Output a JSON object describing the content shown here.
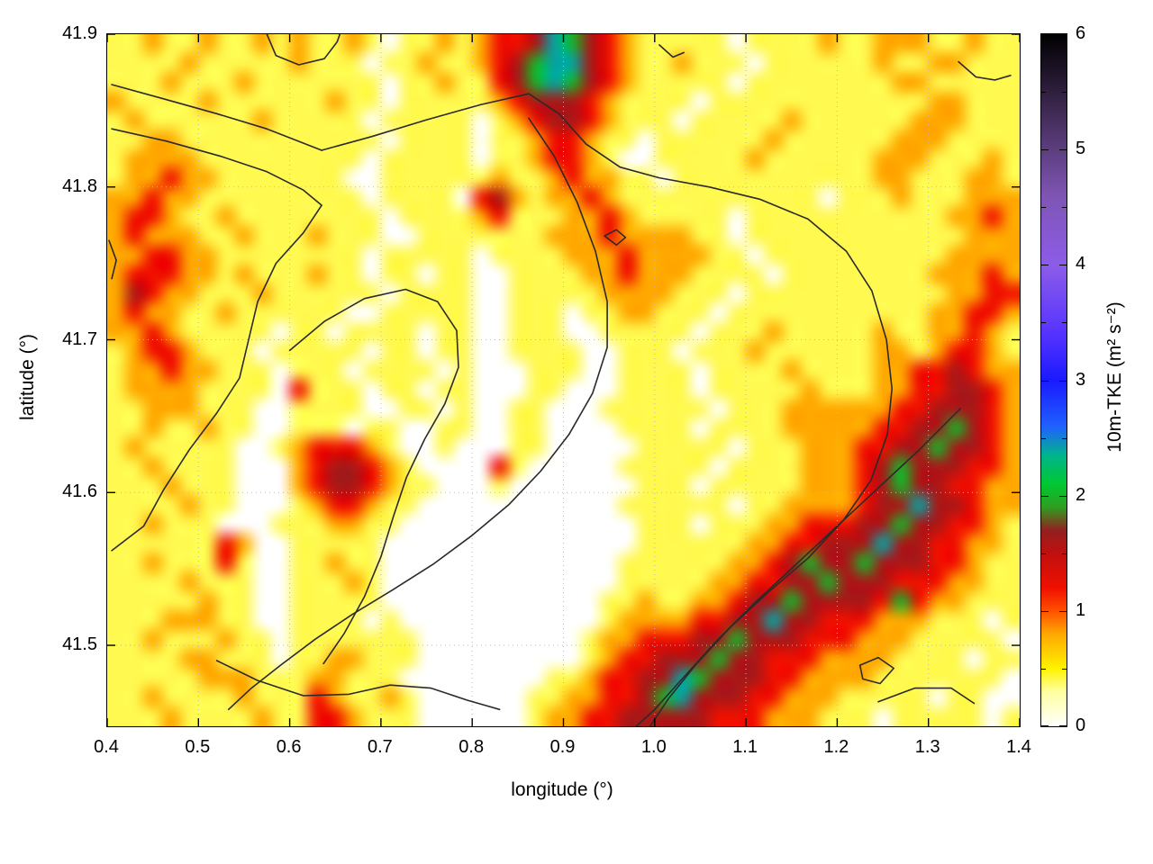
{
  "figure": {
    "xlabel": "longitude (°)",
    "ylabel": "latitude (°)"
  },
  "chart_data": {
    "type": "heatmap",
    "title": "",
    "xlabel": "longitude (°)",
    "ylabel": "latitude (°)",
    "x_range": [
      0.4,
      1.4
    ],
    "y_range": [
      41.447,
      41.9
    ],
    "grid_on": true,
    "grid_color": "#bbbbbb",
    "x_ticks": [
      {
        "v": 0.4,
        "label": "0.4"
      },
      {
        "v": 0.5,
        "label": "0.5"
      },
      {
        "v": 0.6,
        "label": "0.6"
      },
      {
        "v": 0.7,
        "label": "0.7"
      },
      {
        "v": 0.8,
        "label": "0.8"
      },
      {
        "v": 0.9,
        "label": "0.9"
      },
      {
        "v": 1.0,
        "label": "1.0"
      },
      {
        "v": 1.1,
        "label": "1.1"
      },
      {
        "v": 1.2,
        "label": "1.2"
      },
      {
        "v": 1.3,
        "label": "1.3"
      },
      {
        "v": 1.4,
        "label": "1.4"
      }
    ],
    "y_ticks": [
      {
        "v": 41.5,
        "label": "41.5"
      },
      {
        "v": 41.6,
        "label": "41.6"
      },
      {
        "v": 41.7,
        "label": "41.7"
      },
      {
        "v": 41.8,
        "label": "41.8"
      },
      {
        "v": 41.9,
        "label": "41.9"
      }
    ],
    "colorbar": {
      "label": "10m-TKE (m² s⁻²)",
      "range": [
        0,
        6
      ],
      "ticks": [
        {
          "v": 0,
          "label": "0"
        },
        {
          "v": 1,
          "label": "1"
        },
        {
          "v": 2,
          "label": "2"
        },
        {
          "v": 3,
          "label": "3"
        },
        {
          "v": 4,
          "label": "4"
        },
        {
          "v": 5,
          "label": "5"
        },
        {
          "v": 6,
          "label": "6"
        }
      ],
      "minor_ticks": [
        0.5,
        1.5,
        2.5,
        3.5,
        4.5,
        5.5
      ],
      "stops": [
        [
          0.0,
          "#ffffff"
        ],
        [
          0.3,
          "#ffffa0"
        ],
        [
          0.5,
          "#fff200"
        ],
        [
          0.8,
          "#ffa800"
        ],
        [
          1.0,
          "#ff5000"
        ],
        [
          1.2,
          "#f01000"
        ],
        [
          1.5,
          "#c01010"
        ],
        [
          1.7,
          "#922020"
        ],
        [
          1.9,
          "#2f9e20"
        ],
        [
          2.1,
          "#00c832"
        ],
        [
          2.35,
          "#00b48c"
        ],
        [
          2.6,
          "#2060ff"
        ],
        [
          3.0,
          "#1a1aff"
        ],
        [
          3.4,
          "#5533ff"
        ],
        [
          4.0,
          "#8c5ce8"
        ],
        [
          4.6,
          "#7e55b4"
        ],
        [
          5.2,
          "#4b3264"
        ],
        [
          6.0,
          "#000000"
        ]
      ]
    },
    "grid": {
      "cols": 50,
      "rows": 36,
      "cell_value_scale": 0.4,
      "rows_data": [
        "11211211212112101121233465432111110111121122211211",
        "11112111112111011211234566432112111011111121122111",
        "11121112111111101121134565432111110111111112211111",
        "21111211111121101111123444321111011111111111122111",
        "12111111211111011111012344321110111112111111222111",
        "11221111111111101111011233211011111121111112221111",
        "12222111111111011111011233210011111211111122211121",
        "12232211111110011111121123221101111111111122111221",
        "22322111111111011110342122321111111111101112111222",
        "23321121111111101111231112232111110111111111112232",
        "23222112111211100111111122232222110111111111111222",
        "22332211111111011111011112223222211011111111112222",
        "23332212111211011011001111223222111101111111122232",
        "24322111211111101111001111122221110111111111112233",
        "23221121111110011111001110112211101111111111122332",
        "22321111101101111011001110011111011121111121122321",
        "12332111011111011011001111001110111211111122123321",
        "12232211101110111101000111001111011112111122334322",
        "12222111103111011011000110001111011111211122334432",
        "11222111001111001101001100011111101112222223344432",
        "11211211001110110011001100001111011112222233445432",
        "12111110012333210010001100000111110111222334454432",
        "11211110002344321000031000001111101111222345444332",
        "11121110002344321100010000000111011111222345443322",
        "11112110001233211000000000001111110112222344644322",
        "11211100011122110000000000000111011122333445443321",
        "11111132001111100000000000000111111223344464433221",
        "11211131001121100000000000001111112234544544433211",
        "11112111001112100000000000001111122334454443332211",
        "11111211001111100000000000011211223445444435322111",
        "11122211001111010000000000012222334464433322211101",
        "11211121101111111000000000122333445444333222111110",
        "11112211101122111000000000123344454433322221111011",
        "11111222111221110000000011233446544433222211111110",
        "11211112111321121000000112233456444332221111101100",
        "11121111211332111000000122334444433322211101111101"
      ]
    },
    "contours": {
      "color": "#2a2a2a",
      "width": 1.6,
      "lines": [
        [
          [
            0.405,
            41.867
          ],
          [
            0.46,
            41.858
          ],
          [
            0.52,
            41.848
          ],
          [
            0.575,
            41.838
          ],
          [
            0.635,
            41.824
          ]
        ],
        [
          [
            0.405,
            41.838
          ],
          [
            0.465,
            41.83
          ],
          [
            0.525,
            41.82
          ],
          [
            0.575,
            41.81
          ],
          [
            0.615,
            41.798
          ],
          [
            0.635,
            41.788
          ],
          [
            0.615,
            41.77
          ],
          [
            0.585,
            41.75
          ],
          [
            0.565,
            41.725
          ],
          [
            0.555,
            41.7
          ],
          [
            0.545,
            41.675
          ],
          [
            0.52,
            41.652
          ],
          [
            0.49,
            41.628
          ],
          [
            0.462,
            41.602
          ],
          [
            0.44,
            41.578
          ],
          [
            0.405,
            41.562
          ]
        ],
        [
          [
            0.635,
            41.824
          ],
          [
            0.69,
            41.833
          ],
          [
            0.75,
            41.844
          ],
          [
            0.81,
            41.854
          ],
          [
            0.862,
            41.861
          ],
          [
            0.895,
            41.848
          ],
          [
            0.925,
            41.828
          ],
          [
            0.962,
            41.813
          ],
          [
            1.005,
            41.806
          ],
          [
            1.06,
            41.8
          ],
          [
            1.115,
            41.792
          ],
          [
            1.168,
            41.779
          ],
          [
            1.21,
            41.758
          ],
          [
            1.238,
            41.732
          ],
          [
            1.254,
            41.7
          ],
          [
            1.26,
            41.668
          ],
          [
            1.255,
            41.638
          ],
          [
            1.237,
            41.608
          ],
          [
            1.207,
            41.582
          ],
          [
            1.168,
            41.557
          ],
          [
            1.125,
            41.535
          ],
          [
            1.083,
            41.512
          ],
          [
            1.046,
            41.488
          ],
          [
            1.015,
            41.465
          ],
          [
            0.995,
            41.447
          ]
        ],
        [
          [
            0.862,
            41.845
          ],
          [
            0.89,
            41.82
          ],
          [
            0.915,
            41.79
          ],
          [
            0.935,
            41.758
          ],
          [
            0.948,
            41.725
          ],
          [
            0.948,
            41.695
          ],
          [
            0.932,
            41.665
          ],
          [
            0.906,
            41.638
          ],
          [
            0.875,
            41.614
          ],
          [
            0.84,
            41.592
          ],
          [
            0.8,
            41.572
          ],
          [
            0.757,
            41.553
          ],
          [
            0.712,
            41.536
          ],
          [
            0.668,
            41.52
          ],
          [
            0.628,
            41.504
          ],
          [
            0.59,
            41.487
          ],
          [
            0.558,
            41.472
          ],
          [
            0.533,
            41.458
          ]
        ],
        [
          [
            0.6,
            41.693
          ],
          [
            0.638,
            41.712
          ],
          [
            0.682,
            41.727
          ],
          [
            0.727,
            41.733
          ],
          [
            0.762,
            41.725
          ],
          [
            0.783,
            41.706
          ],
          [
            0.785,
            41.682
          ],
          [
            0.77,
            41.658
          ],
          [
            0.748,
            41.635
          ],
          [
            0.728,
            41.61
          ],
          [
            0.714,
            41.585
          ],
          [
            0.7,
            41.558
          ],
          [
            0.682,
            41.532
          ],
          [
            0.66,
            41.508
          ],
          [
            0.637,
            41.488
          ]
        ],
        [
          [
            0.52,
            41.49
          ],
          [
            0.565,
            41.477
          ],
          [
            0.615,
            41.467
          ],
          [
            0.665,
            41.468
          ],
          [
            0.71,
            41.474
          ],
          [
            0.755,
            41.472
          ],
          [
            0.795,
            41.464
          ],
          [
            0.83,
            41.458
          ]
        ],
        [
          [
            1.335,
            41.655
          ],
          [
            1.29,
            41.628
          ],
          [
            1.245,
            41.603
          ],
          [
            1.2,
            41.578
          ],
          [
            1.155,
            41.553
          ],
          [
            1.11,
            41.528
          ],
          [
            1.068,
            41.503
          ],
          [
            1.03,
            41.478
          ],
          [
            1.0,
            41.458
          ],
          [
            0.978,
            41.446
          ]
        ],
        [
          [
            0.945,
            41.768
          ],
          [
            0.958,
            41.772
          ],
          [
            0.968,
            41.767
          ],
          [
            0.958,
            41.762
          ],
          [
            0.945,
            41.768
          ]
        ],
        [
          [
            1.225,
            41.487
          ],
          [
            1.245,
            41.492
          ],
          [
            1.262,
            41.485
          ],
          [
            1.247,
            41.475
          ],
          [
            1.228,
            41.478
          ],
          [
            1.225,
            41.487
          ]
        ],
        [
          [
            0.575,
            41.9
          ],
          [
            0.585,
            41.886
          ],
          [
            0.61,
            41.88
          ],
          [
            0.638,
            41.884
          ],
          [
            0.652,
            41.895
          ],
          [
            0.655,
            41.9
          ]
        ],
        [
          [
            1.005,
            41.893
          ],
          [
            1.02,
            41.885
          ],
          [
            1.032,
            41.888
          ]
        ],
        [
          [
            1.333,
            41.882
          ],
          [
            1.352,
            41.872
          ],
          [
            1.373,
            41.87
          ],
          [
            1.39,
            41.873
          ]
        ],
        [
          [
            0.402,
            41.765
          ],
          [
            0.41,
            41.752
          ],
          [
            0.405,
            41.74
          ]
        ],
        [
          [
            1.245,
            41.463
          ],
          [
            1.285,
            41.472
          ],
          [
            1.325,
            41.472
          ],
          [
            1.35,
            41.462
          ]
        ]
      ]
    }
  }
}
